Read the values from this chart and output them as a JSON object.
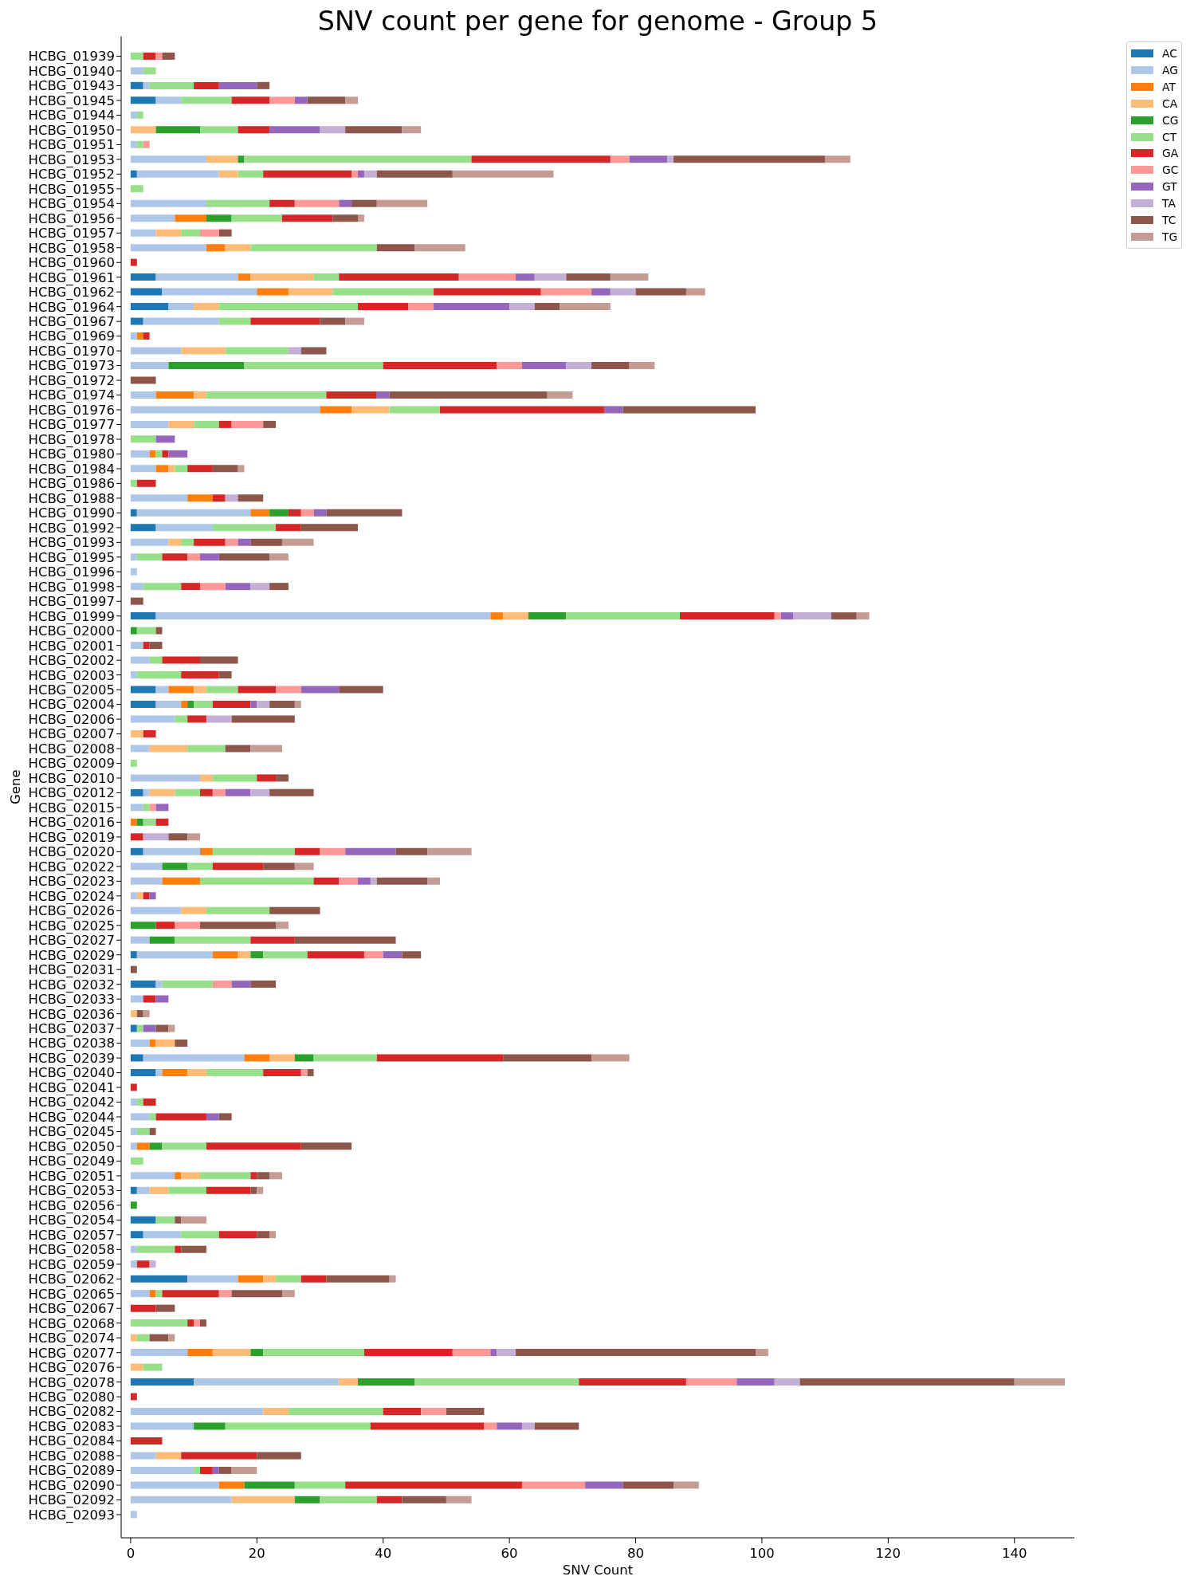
{
  "chart_data": {
    "type": "bar",
    "orientation": "horizontal",
    "stacked": true,
    "title": "SNV count per gene for genome - Group 5",
    "xlabel": "SNV Count",
    "ylabel": "Gene",
    "categories": [
      "HCBG_01939",
      "HCBG_01940",
      "HCBG_01943",
      "HCBG_01945",
      "HCBG_01944",
      "HCBG_01950",
      "HCBG_01951",
      "HCBG_01953",
      "HCBG_01952",
      "HCBG_01955",
      "HCBG_01954",
      "HCBG_01956",
      "HCBG_01957",
      "HCBG_01958",
      "HCBG_01960",
      "HCBG_01961",
      "HCBG_01962",
      "HCBG_01964",
      "HCBG_01967",
      "HCBG_01969",
      "HCBG_01970",
      "HCBG_01973",
      "HCBG_01972",
      "HCBG_01974",
      "HCBG_01976",
      "HCBG_01977",
      "HCBG_01978",
      "HCBG_01980",
      "HCBG_01984",
      "HCBG_01986",
      "HCBG_01988",
      "HCBG_01990",
      "HCBG_01992",
      "HCBG_01993",
      "HCBG_01995",
      "HCBG_01996",
      "HCBG_01998",
      "HCBG_01997",
      "HCBG_01999",
      "HCBG_02000",
      "HCBG_02001",
      "HCBG_02002",
      "HCBG_02003",
      "HCBG_02005",
      "HCBG_02004",
      "HCBG_02006",
      "HCBG_02007",
      "HCBG_02008",
      "HCBG_02009",
      "HCBG_02010",
      "HCBG_02012",
      "HCBG_02015",
      "HCBG_02016",
      "HCBG_02019",
      "HCBG_02020",
      "HCBG_02022",
      "HCBG_02023",
      "HCBG_02024",
      "HCBG_02026",
      "HCBG_02025",
      "HCBG_02027",
      "HCBG_02029",
      "HCBG_02031",
      "HCBG_02032",
      "HCBG_02033",
      "HCBG_02036",
      "HCBG_02037",
      "HCBG_02038",
      "HCBG_02039",
      "HCBG_02040",
      "HCBG_02041",
      "HCBG_02042",
      "HCBG_02044",
      "HCBG_02045",
      "HCBG_02050",
      "HCBG_02049",
      "HCBG_02051",
      "HCBG_02053",
      "HCBG_02056",
      "HCBG_02054",
      "HCBG_02057",
      "HCBG_02058",
      "HCBG_02059",
      "HCBG_02062",
      "HCBG_02065",
      "HCBG_02067",
      "HCBG_02068",
      "HCBG_02074",
      "HCBG_02077",
      "HCBG_02076",
      "HCBG_02078",
      "HCBG_02080",
      "HCBG_02082",
      "HCBG_02083",
      "HCBG_02084",
      "HCBG_02088",
      "HCBG_02089",
      "HCBG_02090",
      "HCBG_02092",
      "HCBG_02093"
    ],
    "series": [
      {
        "name": "AC",
        "color": "#1f77b4",
        "values": [
          0,
          0,
          2,
          4,
          0,
          0,
          0,
          0,
          1,
          0,
          0,
          0,
          0,
          0,
          0,
          4,
          5,
          6,
          2,
          0,
          0,
          0,
          0,
          0,
          0,
          0,
          0,
          0,
          0,
          0,
          0,
          1,
          4,
          0,
          0,
          0,
          0,
          0,
          4,
          0,
          0,
          0,
          0,
          4,
          4,
          0,
          0,
          0,
          0,
          0,
          2,
          0,
          0,
          0,
          2,
          0,
          0,
          0,
          0,
          0,
          0,
          1,
          0,
          4,
          0,
          0,
          1,
          0,
          2,
          4,
          0,
          0,
          0,
          0,
          0,
          0,
          0,
          1,
          0,
          4,
          2,
          0,
          0,
          9,
          0,
          0,
          0,
          0,
          0,
          0,
          10,
          0,
          0,
          0,
          0,
          0,
          0,
          0,
          0,
          0
        ]
      },
      {
        "name": "AG",
        "color": "#aec7e8",
        "values": [
          0,
          2,
          1,
          4,
          1,
          0,
          1,
          12,
          13,
          0,
          12,
          7,
          4,
          12,
          0,
          13,
          15,
          4,
          12,
          1,
          8,
          6,
          0,
          4,
          30,
          6,
          0,
          3,
          4,
          0,
          9,
          18,
          9,
          6,
          1,
          1,
          2,
          0,
          53,
          0,
          2,
          3,
          1,
          2,
          4,
          7,
          0,
          3,
          0,
          11,
          1,
          2,
          0,
          0,
          9,
          5,
          5,
          1,
          8,
          0,
          3,
          12,
          0,
          1,
          2,
          0,
          0,
          3,
          16,
          1,
          0,
          1,
          3,
          1,
          1,
          0,
          7,
          2,
          0,
          0,
          6,
          1,
          1,
          8,
          3,
          0,
          0,
          0,
          9,
          0,
          23,
          0,
          21,
          10,
          0,
          4,
          10,
          14,
          16,
          1
        ]
      },
      {
        "name": "AT",
        "color": "#ff7f0e",
        "values": [
          0,
          0,
          0,
          0,
          0,
          0,
          0,
          0,
          0,
          0,
          0,
          5,
          0,
          3,
          0,
          2,
          5,
          0,
          0,
          1,
          0,
          0,
          0,
          6,
          5,
          0,
          0,
          1,
          2,
          0,
          4,
          3,
          0,
          0,
          0,
          0,
          0,
          0,
          2,
          0,
          0,
          0,
          0,
          4,
          1,
          0,
          0,
          0,
          0,
          0,
          0,
          0,
          1,
          0,
          2,
          0,
          6,
          0,
          0,
          0,
          0,
          4,
          0,
          0,
          0,
          0,
          0,
          1,
          4,
          4,
          0,
          0,
          0,
          0,
          2,
          0,
          1,
          0,
          0,
          0,
          0,
          0,
          0,
          4,
          1,
          0,
          0,
          0,
          4,
          0,
          0,
          0,
          0,
          0,
          0,
          0,
          0,
          4,
          0,
          0
        ]
      },
      {
        "name": "CA",
        "color": "#ffbb78",
        "values": [
          0,
          0,
          0,
          0,
          0,
          4,
          0,
          5,
          3,
          0,
          0,
          0,
          4,
          4,
          0,
          10,
          7,
          4,
          0,
          0,
          7,
          0,
          0,
          2,
          6,
          4,
          0,
          0,
          1,
          0,
          0,
          0,
          0,
          2,
          0,
          0,
          0,
          0,
          4,
          0,
          0,
          0,
          0,
          2,
          0,
          0,
          2,
          6,
          0,
          2,
          4,
          0,
          0,
          0,
          0,
          0,
          0,
          1,
          4,
          0,
          0,
          2,
          0,
          0,
          0,
          1,
          0,
          3,
          4,
          3,
          0,
          0,
          0,
          0,
          0,
          0,
          3,
          3,
          0,
          0,
          0,
          0,
          0,
          2,
          0,
          0,
          0,
          1,
          6,
          2,
          3,
          0,
          4,
          0,
          0,
          4,
          0,
          0,
          10,
          0
        ]
      },
      {
        "name": "CG",
        "color": "#2ca02c",
        "values": [
          0,
          0,
          0,
          0,
          0,
          7,
          0,
          1,
          0,
          0,
          0,
          4,
          0,
          0,
          0,
          0,
          0,
          0,
          0,
          0,
          0,
          12,
          0,
          0,
          0,
          0,
          0,
          0,
          0,
          0,
          0,
          3,
          0,
          0,
          0,
          0,
          0,
          0,
          6,
          1,
          0,
          0,
          0,
          0,
          1,
          0,
          0,
          0,
          0,
          0,
          0,
          0,
          1,
          0,
          0,
          4,
          0,
          0,
          0,
          4,
          4,
          2,
          0,
          0,
          0,
          0,
          0,
          0,
          3,
          0,
          0,
          0,
          0,
          0,
          2,
          0,
          0,
          0,
          1,
          0,
          0,
          0,
          0,
          0,
          0,
          0,
          0,
          0,
          2,
          0,
          9,
          0,
          0,
          5,
          0,
          0,
          0,
          8,
          4,
          0
        ]
      },
      {
        "name": "CT",
        "color": "#98df8a",
        "values": [
          2,
          2,
          7,
          8,
          1,
          6,
          1,
          36,
          4,
          2,
          10,
          8,
          3,
          20,
          0,
          4,
          16,
          22,
          5,
          0,
          10,
          22,
          0,
          19,
          8,
          4,
          4,
          1,
          2,
          1,
          0,
          0,
          10,
          2,
          4,
          0,
          6,
          0,
          18,
          3,
          0,
          2,
          7,
          5,
          3,
          2,
          0,
          6,
          1,
          7,
          4,
          1,
          2,
          0,
          13,
          4,
          18,
          0,
          10,
          0,
          12,
          7,
          0,
          8,
          0,
          0,
          1,
          0,
          10,
          9,
          0,
          1,
          1,
          2,
          7,
          2,
          8,
          6,
          0,
          3,
          6,
          6,
          0,
          4,
          1,
          0,
          9,
          2,
          16,
          3,
          26,
          0,
          15,
          23,
          0,
          0,
          1,
          8,
          9,
          0
        ]
      },
      {
        "name": "GA",
        "color": "#d62728",
        "values": [
          2,
          0,
          4,
          6,
          0,
          5,
          0,
          22,
          14,
          0,
          4,
          8,
          0,
          0,
          1,
          19,
          17,
          8,
          11,
          1,
          0,
          18,
          0,
          8,
          26,
          2,
          0,
          1,
          4,
          3,
          2,
          2,
          4,
          5,
          4,
          0,
          3,
          0,
          15,
          0,
          1,
          6,
          6,
          6,
          6,
          3,
          2,
          0,
          0,
          3,
          2,
          0,
          2,
          2,
          4,
          8,
          4,
          1,
          0,
          3,
          7,
          9,
          0,
          0,
          2,
          0,
          0,
          0,
          20,
          6,
          1,
          2,
          8,
          0,
          15,
          0,
          1,
          7,
          0,
          0,
          6,
          1,
          2,
          4,
          9,
          4,
          1,
          0,
          14,
          0,
          17,
          1,
          6,
          18,
          5,
          12,
          2,
          28,
          4,
          0
        ]
      },
      {
        "name": "GC",
        "color": "#ff9896",
        "values": [
          1,
          0,
          0,
          4,
          0,
          0,
          1,
          3,
          1,
          0,
          7,
          0,
          3,
          0,
          0,
          9,
          8,
          4,
          0,
          0,
          0,
          4,
          0,
          0,
          0,
          5,
          0,
          0,
          0,
          0,
          0,
          2,
          0,
          2,
          2,
          0,
          4,
          0,
          1,
          0,
          0,
          0,
          0,
          4,
          0,
          0,
          0,
          0,
          0,
          0,
          2,
          1,
          0,
          0,
          4,
          0,
          3,
          0,
          0,
          4,
          0,
          3,
          0,
          3,
          0,
          0,
          0,
          0,
          0,
          1,
          0,
          0,
          0,
          0,
          0,
          0,
          0,
          0,
          0,
          0,
          0,
          0,
          0,
          0,
          2,
          0,
          1,
          0,
          6,
          0,
          8,
          0,
          4,
          2,
          0,
          0,
          0,
          10,
          0,
          0
        ]
      },
      {
        "name": "GT",
        "color": "#9467bd",
        "values": [
          0,
          0,
          6,
          2,
          0,
          8,
          0,
          6,
          1,
          0,
          2,
          0,
          0,
          0,
          0,
          3,
          3,
          12,
          0,
          0,
          0,
          7,
          0,
          2,
          3,
          0,
          3,
          3,
          0,
          0,
          0,
          2,
          0,
          2,
          3,
          0,
          4,
          0,
          2,
          0,
          0,
          0,
          0,
          6,
          1,
          0,
          0,
          0,
          0,
          0,
          4,
          2,
          0,
          0,
          8,
          0,
          2,
          1,
          0,
          0,
          0,
          3,
          0,
          3,
          2,
          0,
          2,
          0,
          0,
          0,
          0,
          0,
          2,
          0,
          0,
          0,
          0,
          0,
          0,
          0,
          0,
          0,
          0,
          0,
          0,
          0,
          0,
          0,
          1,
          0,
          6,
          0,
          0,
          4,
          0,
          0,
          1,
          6,
          0,
          0
        ]
      },
      {
        "name": "TA",
        "color": "#c5b0d5",
        "values": [
          0,
          0,
          0,
          0,
          0,
          4,
          0,
          1,
          2,
          0,
          0,
          0,
          0,
          0,
          0,
          5,
          4,
          4,
          0,
          0,
          2,
          4,
          0,
          0,
          0,
          0,
          0,
          0,
          0,
          0,
          2,
          0,
          0,
          0,
          0,
          0,
          3,
          0,
          6,
          0,
          0,
          0,
          0,
          0,
          2,
          4,
          0,
          0,
          0,
          0,
          3,
          0,
          0,
          4,
          0,
          0,
          1,
          0,
          0,
          0,
          0,
          0,
          0,
          0,
          0,
          0,
          0,
          0,
          0,
          0,
          0,
          0,
          0,
          0,
          0,
          0,
          0,
          0,
          0,
          0,
          0,
          0,
          1,
          0,
          0,
          0,
          0,
          0,
          3,
          0,
          4,
          0,
          0,
          2,
          0,
          0,
          0,
          0,
          0,
          0
        ]
      },
      {
        "name": "TC",
        "color": "#8c564b",
        "values": [
          2,
          0,
          2,
          6,
          0,
          9,
          0,
          24,
          12,
          0,
          4,
          4,
          2,
          6,
          0,
          7,
          8,
          4,
          4,
          0,
          4,
          6,
          4,
          25,
          21,
          2,
          0,
          0,
          4,
          0,
          4,
          12,
          9,
          5,
          8,
          0,
          3,
          2,
          4,
          1,
          2,
          6,
          2,
          7,
          4,
          10,
          0,
          4,
          0,
          2,
          7,
          0,
          0,
          3,
          5,
          5,
          8,
          0,
          8,
          12,
          16,
          3,
          1,
          4,
          0,
          1,
          2,
          2,
          14,
          1,
          0,
          0,
          2,
          1,
          8,
          0,
          2,
          1,
          0,
          1,
          2,
          4,
          0,
          10,
          8,
          3,
          1,
          3,
          38,
          0,
          34,
          0,
          6,
          7,
          0,
          7,
          2,
          8,
          7,
          0
        ]
      },
      {
        "name": "TG",
        "color": "#c49c94",
        "values": [
          0,
          0,
          0,
          2,
          0,
          3,
          0,
          4,
          16,
          0,
          8,
          1,
          0,
          8,
          0,
          6,
          3,
          8,
          3,
          0,
          0,
          4,
          0,
          4,
          0,
          0,
          0,
          0,
          1,
          0,
          0,
          0,
          0,
          5,
          3,
          0,
          0,
          0,
          2,
          0,
          0,
          0,
          0,
          0,
          1,
          0,
          0,
          5,
          0,
          0,
          0,
          0,
          0,
          2,
          7,
          3,
          2,
          0,
          0,
          2,
          0,
          0,
          0,
          0,
          0,
          1,
          1,
          0,
          6,
          0,
          0,
          0,
          0,
          0,
          0,
          0,
          2,
          1,
          0,
          4,
          1,
          0,
          0,
          1,
          2,
          0,
          0,
          1,
          2,
          0,
          8,
          0,
          0,
          0,
          0,
          0,
          4,
          4,
          4,
          0
        ]
      }
    ],
    "xlim": [
      -1.5,
      149.5
    ],
    "xticks": [
      0,
      20,
      40,
      60,
      80,
      100,
      120,
      140
    ],
    "legend": "top right"
  }
}
